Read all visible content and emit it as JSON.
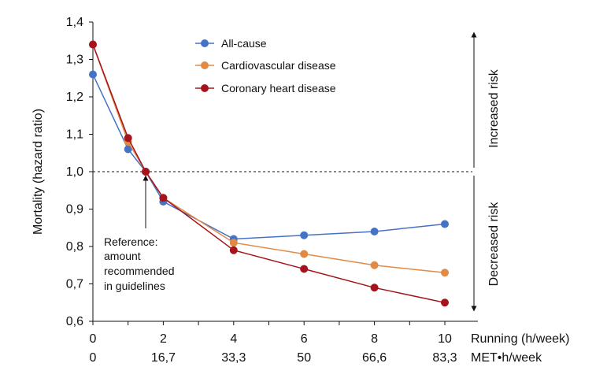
{
  "chart_data": {
    "type": "line",
    "title": "",
    "xlabel": "Running (h/week)",
    "xlabel_secondary": "MET•h/week",
    "ylabel": "Mortality (hazard ratio)",
    "xlim": [
      0,
      11
    ],
    "ylim": [
      0.6,
      1.4
    ],
    "x_ticks": [
      "0",
      "2",
      "4",
      "6",
      "8",
      "10"
    ],
    "x_ticks_secondary": [
      "0",
      "16,7",
      "33,3",
      "50",
      "66,6",
      "83,3"
    ],
    "y_ticks": [
      "0,6",
      "0,7",
      "0,8",
      "0,9",
      "1,0",
      "1,1",
      "1,2",
      "1,3",
      "1,4"
    ],
    "reference_line": 1.0,
    "series": [
      {
        "name": "All-cause",
        "color": "#4472C4",
        "x": [
          0,
          1,
          1.5,
          2,
          4,
          6,
          8,
          10
        ],
        "values": [
          1.26,
          1.06,
          1.0,
          0.92,
          0.82,
          0.83,
          0.84,
          0.86
        ]
      },
      {
        "name": "Cardiovascular disease",
        "color": "#E08A45",
        "x": [
          0,
          1,
          1.5,
          2,
          4,
          6,
          8,
          10
        ],
        "values": [
          1.34,
          1.08,
          1.0,
          0.93,
          0.81,
          0.78,
          0.75,
          0.73
        ]
      },
      {
        "name": "Coronary heart disease",
        "color": "#A5141C",
        "x": [
          0,
          1,
          1.5,
          2,
          4,
          6,
          8,
          10
        ],
        "values": [
          1.34,
          1.09,
          1.0,
          0.93,
          0.79,
          0.74,
          0.69,
          0.65
        ]
      }
    ],
    "annotations": {
      "reference_lines": [
        "Reference:",
        "amount",
        "recommended",
        "in guidelines"
      ],
      "increased_risk": "Increased risk",
      "decreased_risk": "Decreased risk"
    }
  }
}
